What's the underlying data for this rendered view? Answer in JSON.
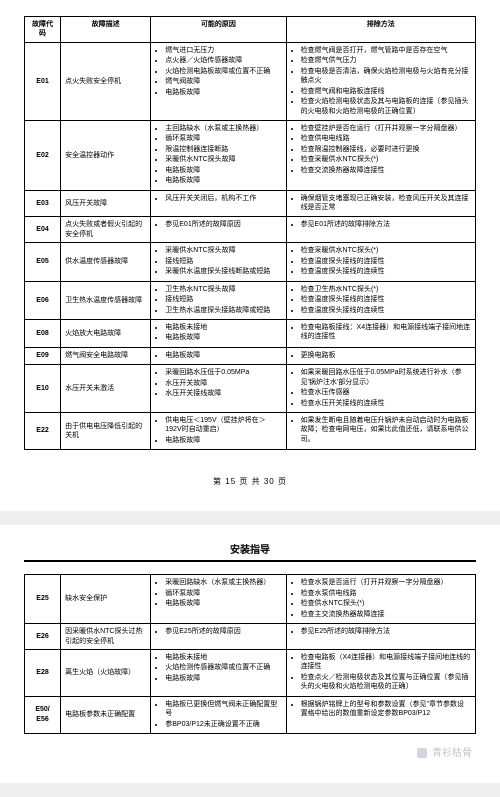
{
  "page1": {
    "headers": [
      "故障代码",
      "故障描述",
      "可能的原因",
      "排除方法"
    ],
    "rows": [
      {
        "code": "E01",
        "desc": "点火失败安全停机",
        "cause": [
          "燃气进口无压力",
          "点火器／火焰传感器故障",
          "火焰检测电路板故障或位置不正确",
          "燃气阀故障",
          "电路板故障"
        ],
        "fix": [
          "检查燃气阀是否打开，燃气管路中是否存在空气",
          "检查燃气供气压力",
          "检查电极是否清洁，确保火焰检测电极与火焰有充分接触点火",
          "检查燃气阀和电路板连接线",
          "检查火焰检测电极状态及其与电路板的连接〔参见插头的火电极和火焰检测电极的正确位置〕"
        ]
      },
      {
        "code": "E02",
        "desc": "安全温控器动作",
        "cause": [
          "主回路缺水（水泵或主换热器）",
          "循环泵故障",
          "限温控制器连接断路",
          "采暖供水NTC探头故障",
          "电路板故障",
          "电路板故障"
        ],
        "fix": [
          "检查壁挂炉是否在运行（打开并观察一字分隔盘器）",
          "检查供电电线路",
          "检查限温控制器接线，必要时进行更换",
          "检查采暖供水NTC探头(*)",
          "检查交流换热器故障连接性"
        ]
      },
      {
        "code": "E03",
        "desc": "风压开关故障",
        "cause": [
          "风压开关关闭后，机构不工作"
        ],
        "fix": [
          "确保烟管支堵塞现已正确安装，检查风压开关及其连接线是否正常"
        ]
      },
      {
        "code": "E04",
        "desc": "点火失败或者假火引起的安全停机",
        "cause": [
          "参见E01所述的故障原因"
        ],
        "fix": [
          "参见E01所述的故障排除方法"
        ]
      },
      {
        "code": "E05",
        "desc": "供水温度传感器故障",
        "cause": [
          "采暖供水NTC探头故障",
          "接线短路",
          "采暖供水温度探头接线断路或短路"
        ],
        "fix": [
          "检查采暖供水NTC探头(*)",
          "检查温度探头接线的连接性",
          "检查温度探头接线的连续性"
        ]
      },
      {
        "code": "E06",
        "desc": "卫生热水温度传感器故障",
        "cause": [
          "卫生热水NTC探头故障",
          "接线短路",
          "卫生热水温度探头接路故障或短路"
        ],
        "fix": [
          "检查卫生热水NTC探头(*)",
          "检查温度探头接线的连接性",
          "检查温度探头接线的连续性"
        ]
      },
      {
        "code": "E08",
        "desc": "火焰放大电路故障",
        "cause": [
          "电路板未接地",
          "电路板故障"
        ],
        "fix": [
          "检查电路板接线：X4连接器）和电源接线端子接间地连线的连接性"
        ]
      },
      {
        "code": "E09",
        "desc": "燃气阀安全电路故障",
        "cause": [
          "电路板故障"
        ],
        "fix": [
          "更换电路板"
        ]
      },
      {
        "code": "E10",
        "desc": "水压开关未激活",
        "cause": [
          "采暖回路水压低于0.05MPa",
          "水压开关故障",
          "水压开关接线故障"
        ],
        "fix": [
          "如果采暖回路水压低于0.05MPa时系统进行补水（参见'锅炉注水'部分显示）",
          "检查水压传感器",
          "检查水压开关接线的连续性"
        ]
      },
      {
        "code": "E22",
        "desc": "由于供电电压降低引起的关机",
        "cause": [
          "供电电压＜195V（壁挂炉将在＞192V时自动重启）",
          "电路板故障"
        ],
        "fix": [
          "如果发生断电且随着电压升锅炉未自动启动时为电路板故障；检查电网电压，如果比此值还低，请联系电供公司。"
        ]
      }
    ],
    "footer": "第 15 页  共 30 页"
  },
  "page2": {
    "title": "安装指导",
    "headers": [
      "",
      "",
      "",
      ""
    ],
    "rows": [
      {
        "code": "E25",
        "desc": "缺水安全保护",
        "cause": [
          "采暖回路缺水（水泵或主换热器）",
          "循环泵故障",
          "电路板故障"
        ],
        "fix": [
          "检查水泵是否运行（打开并观察一字分隔盘器）",
          "检查水泵供电线路",
          "检查供水NTC探头(*)",
          "检查主交流换热器故障连接"
        ]
      },
      {
        "code": "E26",
        "desc": "因采暖供水NTC探头过热引起的安全停机",
        "cause": [
          "参见E25所述的故障原因"
        ],
        "fix": [
          "参见E25所述的故障排除方法"
        ]
      },
      {
        "code": "E28",
        "desc": "离生火焰（火焰故障）",
        "cause": [
          "电路板未接地",
          "火焰检测传感器故障或位置不正确",
          "电路板故障"
        ],
        "fix": [
          "检查电路板（X4连接器）和电源接线端子接间地连线的连接性",
          "检查点火／检测电极状态及其位置与正确位置〔参见插头的火电极和火焰检测电极的正确〕"
        ]
      },
      {
        "code": "E50/\nE56",
        "desc": "电路板参数未正确配置",
        "cause": [
          "电路板已更换但燃气阀未正确配置型号",
          "参BP03/P12未正确设置不正确"
        ],
        "fix": [
          "根据锅炉铭牌上的型号和参数设置（参见\"章节参数设置格中给出的数值重新设定参数BP03/P12"
        ]
      }
    ]
  },
  "watermark": "青衫枯骨"
}
